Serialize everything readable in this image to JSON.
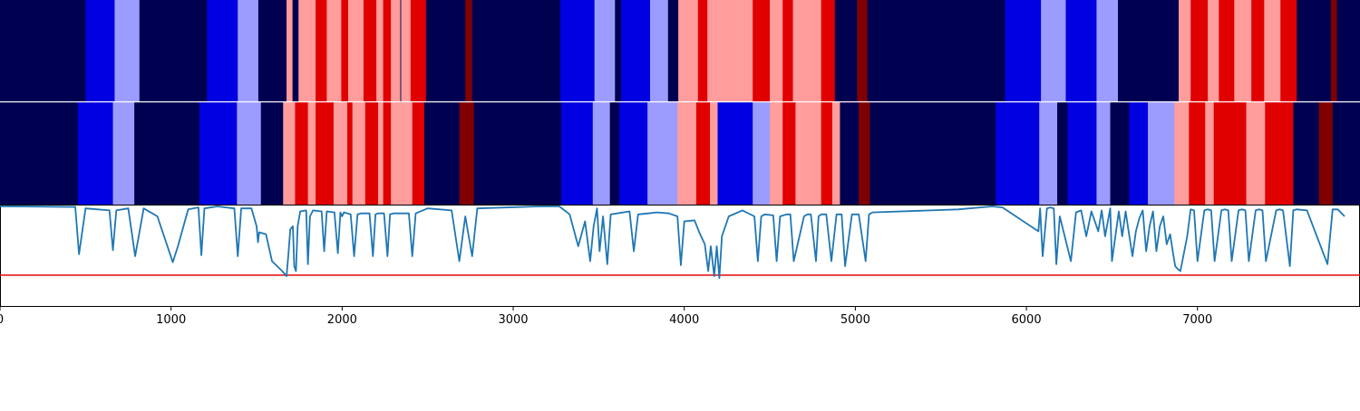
{
  "colors": {
    "navy": "#000050",
    "blue": "#0000e0",
    "light_blue": "#9c9cff",
    "light_red": "#ff9c9c",
    "red": "#e00000",
    "dark_red": "#800000",
    "line": "#1f77b4",
    "threshold": "#e8191b",
    "separator": "#ffffff"
  },
  "chart_data": {
    "type": "heatmap",
    "xlim": [
      0,
      7950
    ],
    "x_ticks": [
      0,
      1000,
      2000,
      3000,
      4000,
      5000,
      6000,
      7000
    ],
    "x_tick_labels": [
      "0",
      "1000",
      "2000",
      "3000",
      "4000",
      "5000",
      "6000",
      "7000"
    ],
    "grid": false,
    "color_classes": [
      "navy",
      "blue",
      "light_blue",
      "light_red",
      "red",
      "dark_red"
    ],
    "tracks": [
      {
        "segments": [
          [
            0,
            500,
            "navy"
          ],
          [
            500,
            670,
            "blue"
          ],
          [
            670,
            815,
            "light_blue"
          ],
          [
            815,
            1210,
            "navy"
          ],
          [
            1210,
            1390,
            "blue"
          ],
          [
            1390,
            1510,
            "light_blue"
          ],
          [
            1510,
            1675,
            "navy"
          ],
          [
            1675,
            1710,
            "light_red"
          ],
          [
            1710,
            1745,
            "navy"
          ],
          [
            1745,
            1845,
            "light_red"
          ],
          [
            1845,
            1910,
            "red"
          ],
          [
            1910,
            1995,
            "light_red"
          ],
          [
            1995,
            2035,
            "red"
          ],
          [
            2035,
            2125,
            "light_red"
          ],
          [
            2125,
            2200,
            "red"
          ],
          [
            2200,
            2240,
            "light_red"
          ],
          [
            2240,
            2285,
            "red"
          ],
          [
            2285,
            2340,
            "light_red"
          ],
          [
            2340,
            2345,
            "navy"
          ],
          [
            2345,
            2400,
            "light_red"
          ],
          [
            2400,
            2490,
            "red"
          ],
          [
            2490,
            2720,
            "navy"
          ],
          [
            2720,
            2760,
            "dark_red"
          ],
          [
            2760,
            3275,
            "navy"
          ],
          [
            3275,
            3475,
            "blue"
          ],
          [
            3475,
            3595,
            "light_blue"
          ],
          [
            3595,
            3630,
            "navy"
          ],
          [
            3630,
            3800,
            "blue"
          ],
          [
            3800,
            3905,
            "light_blue"
          ],
          [
            3905,
            3965,
            "navy"
          ],
          [
            3965,
            4080,
            "light_red"
          ],
          [
            4080,
            4135,
            "red"
          ],
          [
            4135,
            4400,
            "light_red"
          ],
          [
            4400,
            4500,
            "red"
          ],
          [
            4500,
            4575,
            "light_red"
          ],
          [
            4575,
            4635,
            "red"
          ],
          [
            4635,
            4800,
            "light_red"
          ],
          [
            4800,
            4880,
            "red"
          ],
          [
            4880,
            5010,
            "navy"
          ],
          [
            5010,
            5070,
            "dark_red"
          ],
          [
            5070,
            5875,
            "navy"
          ],
          [
            5875,
            6085,
            "blue"
          ],
          [
            6085,
            6230,
            "light_blue"
          ],
          [
            6230,
            6410,
            "blue"
          ],
          [
            6410,
            6535,
            "light_blue"
          ],
          [
            6535,
            6890,
            "navy"
          ],
          [
            6890,
            6960,
            "light_red"
          ],
          [
            6960,
            7060,
            "red"
          ],
          [
            7060,
            7125,
            "light_red"
          ],
          [
            7125,
            7215,
            "red"
          ],
          [
            7215,
            7315,
            "light_red"
          ],
          [
            7315,
            7390,
            "red"
          ],
          [
            7390,
            7485,
            "light_red"
          ],
          [
            7485,
            7580,
            "red"
          ],
          [
            7580,
            7780,
            "navy"
          ],
          [
            7780,
            7815,
            "dark_red"
          ],
          [
            7815,
            7950,
            "navy"
          ]
        ]
      },
      {
        "segments": [
          [
            0,
            455,
            "navy"
          ],
          [
            455,
            660,
            "blue"
          ],
          [
            660,
            785,
            "light_blue"
          ],
          [
            785,
            1165,
            "navy"
          ],
          [
            1165,
            1385,
            "blue"
          ],
          [
            1385,
            1525,
            "light_blue"
          ],
          [
            1525,
            1655,
            "navy"
          ],
          [
            1655,
            1725,
            "light_red"
          ],
          [
            1725,
            1800,
            "red"
          ],
          [
            1800,
            1845,
            "light_red"
          ],
          [
            1845,
            1950,
            "red"
          ],
          [
            1950,
            2030,
            "light_red"
          ],
          [
            2030,
            2060,
            "red"
          ],
          [
            2060,
            2135,
            "light_red"
          ],
          [
            2135,
            2210,
            "red"
          ],
          [
            2210,
            2240,
            "light_red"
          ],
          [
            2240,
            2285,
            "red"
          ],
          [
            2285,
            2410,
            "light_red"
          ],
          [
            2410,
            2480,
            "red"
          ],
          [
            2480,
            2685,
            "navy"
          ],
          [
            2685,
            2770,
            "dark_red"
          ],
          [
            2770,
            3280,
            "navy"
          ],
          [
            3280,
            3465,
            "blue"
          ],
          [
            3465,
            3565,
            "light_blue"
          ],
          [
            3565,
            3620,
            "navy"
          ],
          [
            3620,
            3785,
            "blue"
          ],
          [
            3785,
            3960,
            "light_blue"
          ],
          [
            3960,
            4070,
            "light_red"
          ],
          [
            4070,
            4150,
            "red"
          ],
          [
            4150,
            4195,
            "light_red"
          ],
          [
            4195,
            4400,
            "blue"
          ],
          [
            4400,
            4500,
            "light_blue"
          ],
          [
            4500,
            4575,
            "light_red"
          ],
          [
            4575,
            4650,
            "red"
          ],
          [
            4650,
            4800,
            "light_red"
          ],
          [
            4800,
            4865,
            "red"
          ],
          [
            4865,
            4910,
            "light_red"
          ],
          [
            4910,
            5020,
            "navy"
          ],
          [
            5020,
            5085,
            "dark_red"
          ],
          [
            5085,
            5820,
            "navy"
          ],
          [
            5820,
            6075,
            "blue"
          ],
          [
            6075,
            6180,
            "light_blue"
          ],
          [
            6180,
            6240,
            "navy"
          ],
          [
            6240,
            6410,
            "blue"
          ],
          [
            6410,
            6490,
            "light_blue"
          ],
          [
            6490,
            6600,
            "navy"
          ],
          [
            6600,
            6710,
            "blue"
          ],
          [
            6710,
            6865,
            "light_blue"
          ],
          [
            6865,
            6950,
            "light_red"
          ],
          [
            6950,
            7045,
            "red"
          ],
          [
            7045,
            7095,
            "light_red"
          ],
          [
            7095,
            7285,
            "red"
          ],
          [
            7285,
            7395,
            "light_red"
          ],
          [
            7395,
            7560,
            "red"
          ],
          [
            7560,
            7710,
            "navy"
          ],
          [
            7710,
            7790,
            "dark_red"
          ],
          [
            7790,
            7950,
            "navy"
          ]
        ]
      }
    ],
    "line": {
      "ylim": [
        0,
        1
      ],
      "threshold": 0.31,
      "x": [
        0,
        80,
        440,
        462,
        500,
        640,
        660,
        680,
        750,
        790,
        840,
        920,
        1010,
        1040,
        1100,
        1160,
        1177,
        1195,
        1270,
        1370,
        1390,
        1410,
        1470,
        1500,
        1508,
        1515,
        1555,
        1590,
        1620,
        1650,
        1670,
        1675,
        1685,
        1697,
        1712,
        1720,
        1730,
        1740,
        1755,
        1790,
        1800,
        1812,
        1830,
        1880,
        1895,
        1910,
        1955,
        1975,
        1990,
        2000,
        2010,
        2050,
        2070,
        2090,
        2110,
        2160,
        2180,
        2195,
        2210,
        2245,
        2265,
        2280,
        2300,
        2390,
        2410,
        2430,
        2500,
        2640,
        2685,
        2720,
        2760,
        2790,
        3150,
        3270,
        3330,
        3380,
        3420,
        3450,
        3470,
        3490,
        3505,
        3525,
        3550,
        3570,
        3680,
        3705,
        3730,
        3790,
        3840,
        3910,
        3960,
        3980,
        4000,
        4060,
        4090,
        4120,
        4140,
        4155,
        4175,
        4190,
        4205,
        4220,
        4260,
        4340,
        4410,
        4430,
        4450,
        4470,
        4520,
        4540,
        4560,
        4600,
        4620,
        4640,
        4700,
        4720,
        4740,
        4770,
        4785,
        4800,
        4830,
        4860,
        4890,
        4905,
        4920,
        4940,
        4980,
        5000,
        5020,
        5060,
        5080,
        5100,
        5600,
        5800,
        5860,
        6070,
        6080,
        6095,
        6120,
        6140,
        6160,
        6175,
        6195,
        6260,
        6290,
        6320,
        6350,
        6380,
        6420,
        6440,
        6460,
        6490,
        6500,
        6520,
        6540,
        6560,
        6580,
        6600,
        6620,
        6640,
        6660,
        6680,
        6700,
        6720,
        6740,
        6760,
        6780,
        6800,
        6820,
        6840,
        6860,
        6870,
        6880,
        6900,
        6940,
        6960,
        6980,
        7000,
        7040,
        7060,
        7080,
        7100,
        7140,
        7160,
        7180,
        7200,
        7240,
        7260,
        7280,
        7300,
        7340,
        7360,
        7380,
        7400,
        7460,
        7480,
        7500,
        7540,
        7560,
        7580,
        7640,
        7760,
        7790,
        7820,
        7860,
        7950
      ],
      "y": [
        1.0,
        1.0,
        0.995,
        0.52,
        0.98,
        0.96,
        0.56,
        0.96,
        0.98,
        0.5,
        0.98,
        0.9,
        0.44,
        0.6,
        0.97,
        0.99,
        0.51,
        0.98,
        1.0,
        0.98,
        0.5,
        0.98,
        0.98,
        0.8,
        0.64,
        0.74,
        0.72,
        0.45,
        0.4,
        0.35,
        0.31,
        0.3,
        0.5,
        0.77,
        0.8,
        0.4,
        0.35,
        0.8,
        0.95,
        0.96,
        0.42,
        0.9,
        0.96,
        0.95,
        0.55,
        0.95,
        0.94,
        0.53,
        0.94,
        0.9,
        0.94,
        0.92,
        0.5,
        0.92,
        0.93,
        0.93,
        0.5,
        0.92,
        0.93,
        0.93,
        0.5,
        0.92,
        0.93,
        0.93,
        0.5,
        0.93,
        0.98,
        0.96,
        0.45,
        0.9,
        0.5,
        0.98,
        1.0,
        1.0,
        0.92,
        0.6,
        0.85,
        0.45,
        0.8,
        0.98,
        0.55,
        0.9,
        0.42,
        0.92,
        0.95,
        0.55,
        0.92,
        0.93,
        0.94,
        0.93,
        0.9,
        0.41,
        0.85,
        0.86,
        0.73,
        0.62,
        0.35,
        0.6,
        0.3,
        0.6,
        0.28,
        0.7,
        0.9,
        0.96,
        0.9,
        0.45,
        0.9,
        0.92,
        0.91,
        0.45,
        0.9,
        0.92,
        0.92,
        0.45,
        0.9,
        0.92,
        0.92,
        0.45,
        0.9,
        0.92,
        0.92,
        0.45,
        0.92,
        0.92,
        0.92,
        0.4,
        0.92,
        0.92,
        0.92,
        0.45,
        0.92,
        0.94,
        0.97,
        1.0,
        0.99,
        0.75,
        0.98,
        0.5,
        0.98,
        0.99,
        0.98,
        0.42,
        0.9,
        0.45,
        0.94,
        0.96,
        0.7,
        0.95,
        0.75,
        0.96,
        0.7,
        0.98,
        0.45,
        0.7,
        0.95,
        0.7,
        0.95,
        0.72,
        0.5,
        0.75,
        0.88,
        0.96,
        0.55,
        0.8,
        0.95,
        0.55,
        0.8,
        0.9,
        0.62,
        0.72,
        0.5,
        0.4,
        0.38,
        0.35,
        0.7,
        0.97,
        0.96,
        0.45,
        0.96,
        0.97,
        0.96,
        0.45,
        0.96,
        0.97,
        0.96,
        0.45,
        0.96,
        0.97,
        0.96,
        0.45,
        0.96,
        0.97,
        0.96,
        0.45,
        0.96,
        0.97,
        0.96,
        0.4,
        0.96,
        0.97,
        0.96,
        0.42,
        0.97,
        0.97,
        0.9
      ]
    }
  }
}
